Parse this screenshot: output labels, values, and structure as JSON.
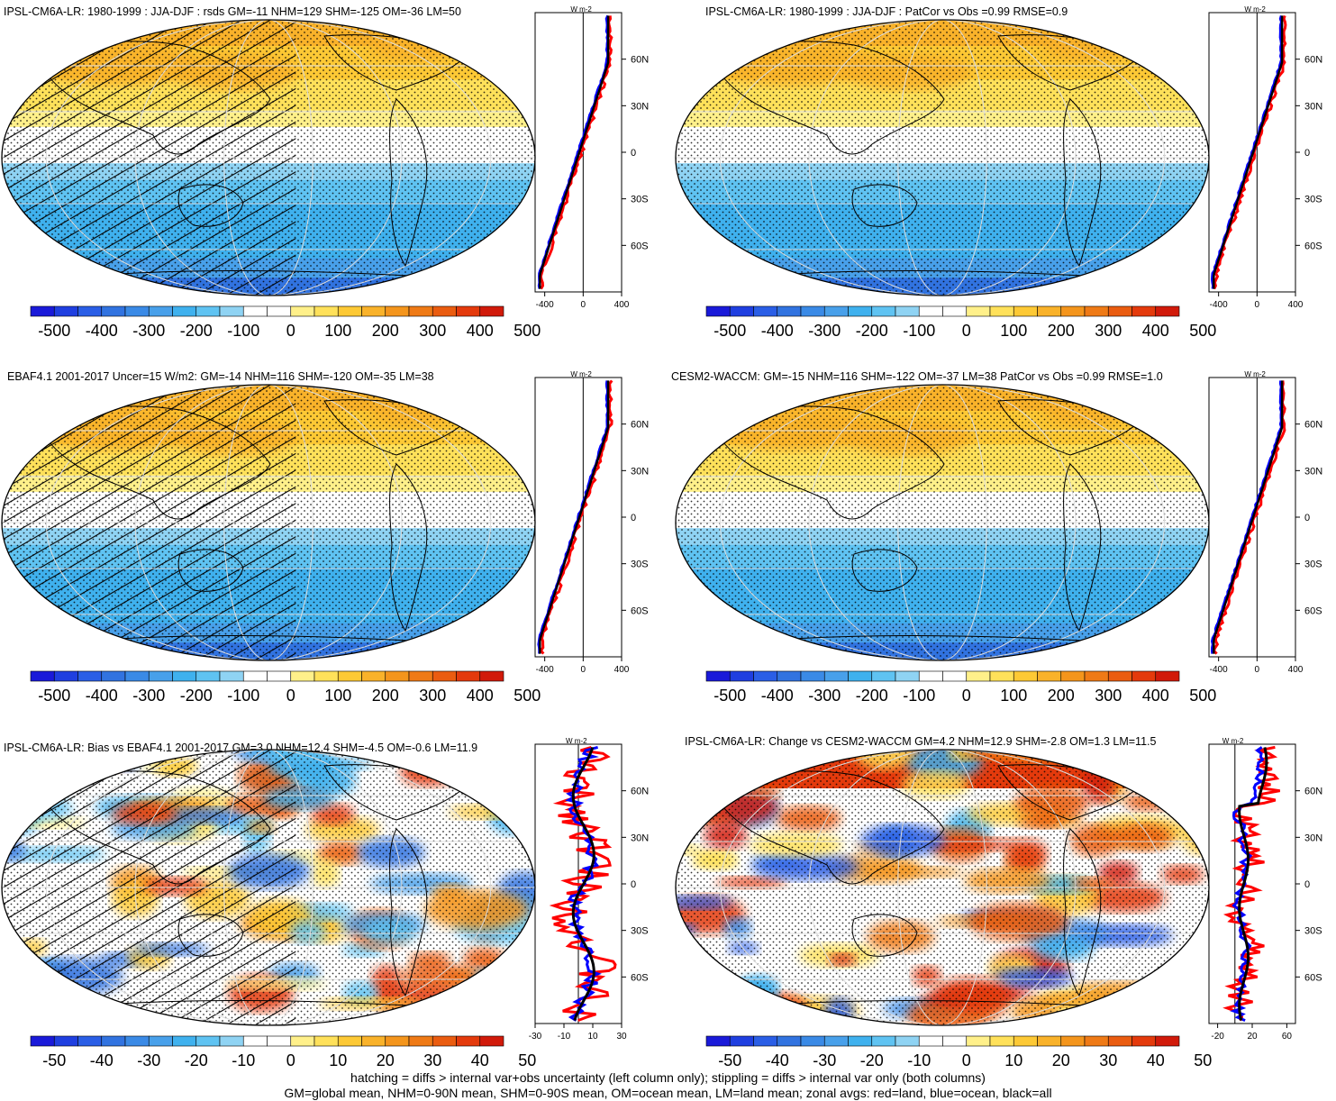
{
  "panels": [
    {
      "title": "IPSL-CM6A-LR: 1980-1999 : JJA-DJF : rsds GM=-11 NHM=129 SHM=-125 OM=-36 LM=50",
      "kind": "clim",
      "hatch": true,
      "zonal_xticks": [
        "-400",
        "0",
        "400"
      ],
      "zonal_units": "W m-2",
      "cbar_labels": [
        "-500",
        "-400",
        "-300",
        "-200",
        "-100",
        "0",
        "100",
        "200",
        "300",
        "400",
        "500"
      ]
    },
    {
      "title": "IPSL-CM6A-LR: 1980-1999 : JJA-DJF : PatCor vs Obs =0.99 RMSE=0.9",
      "kind": "clim",
      "hatch": false,
      "zonal_xticks": [
        "-400",
        "0",
        "400"
      ],
      "zonal_units": "W m-2",
      "cbar_labels": [
        "-500",
        "-400",
        "-300",
        "-200",
        "-100",
        "0",
        "100",
        "200",
        "300",
        "400",
        "500"
      ]
    },
    {
      "title": "EBAF4.1 2001-2017 Uncer=15 W/m2: GM=-14 NHM=116 SHM=-120 OM=-35 LM=38",
      "kind": "clim",
      "hatch": true,
      "zonal_xticks": [
        "-400",
        "0",
        "400"
      ],
      "zonal_units": "W m-2",
      "cbar_labels": [
        "-500",
        "-400",
        "-300",
        "-200",
        "-100",
        "0",
        "100",
        "200",
        "300",
        "400",
        "500"
      ]
    },
    {
      "title": "CESM2-WACCM: GM=-15 NHM=116 SHM=-122 OM=-37 LM=38 PatCor vs Obs =0.99 RMSE=1.0",
      "kind": "clim",
      "hatch": false,
      "zonal_xticks": [
        "-400",
        "0",
        "400"
      ],
      "zonal_units": "W m-2",
      "cbar_labels": [
        "-500",
        "-400",
        "-300",
        "-200",
        "-100",
        "0",
        "100",
        "200",
        "300",
        "400",
        "500"
      ]
    },
    {
      "title": "IPSL-CM6A-LR: Bias vs EBAF4.1 2001-2017 GM=3.0 NHM=12.4 SHM=-4.5 OM=-0.6 LM=11.9",
      "kind": "bias",
      "hatch": true,
      "zonal_xticks": [
        "-30",
        "-10",
        "10",
        "30"
      ],
      "zonal_units": "W m-2",
      "cbar_labels": [
        "-50",
        "-40",
        "-30",
        "-20",
        "-10",
        "0",
        "10",
        "20",
        "30",
        "40",
        "50"
      ]
    },
    {
      "title": "IPSL-CM6A-LR: Change vs CESM2-WACCM GM=4.2 NHM=12.9 SHM=-2.8 OM=1.3 LM=11.5",
      "kind": "change",
      "hatch": false,
      "zonal_xticks": [
        "-20",
        "20",
        "60"
      ],
      "zonal_units": "W m-2",
      "cbar_labels": [
        "-50",
        "-40",
        "-30",
        "-20",
        "-10",
        "0",
        "10",
        "20",
        "30",
        "40",
        "50"
      ]
    }
  ],
  "lat_labels": [
    "60N",
    "30N",
    "0",
    "30S",
    "60S"
  ],
  "colors": {
    "scale": [
      "#1a1ad9",
      "#1f3fe0",
      "#2a5ee6",
      "#3173e0",
      "#3a8ae6",
      "#48a0ea",
      "#3fb1ee",
      "#5fc3f2",
      "#8fd3f3",
      "#ffffff",
      "#ffffff",
      "#fff08a",
      "#ffe15a",
      "#fdc935",
      "#f9b22a",
      "#f4951c",
      "#ef7a16",
      "#ea5c10",
      "#e43a0c",
      "#d11a0a"
    ],
    "land": "red",
    "ocean": "blue",
    "all": "black"
  },
  "footer": [
    "hatching = diffs > internal var+obs uncertainty (left column only); stippling = diffs > internal var only (both columns)",
    "GM=global mean, NHM=0-90N mean, SHM=0-90S mean, OM=ocean mean, LM=land mean; zonal avgs: red=land, blue=ocean, black=all"
  ]
}
